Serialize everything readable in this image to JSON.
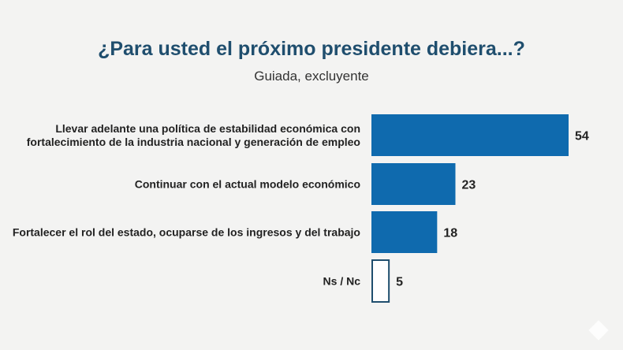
{
  "chart_data": {
    "type": "bar",
    "orientation": "horizontal",
    "title": "¿Para usted el próximo presidente debiera...?",
    "subtitle": "Guiada, excluyente",
    "categories": [
      [
        "Llevar adelante una política de estabilidad económica con",
        "fortalecimiento de la industria nacional y generación de empleo"
      ],
      [
        "Continuar con el actual modelo económico"
      ],
      [
        "Fortalecer el rol del estado, ocuparse de los ingresos y del trabajo"
      ],
      [
        "Ns / Nc"
      ]
    ],
    "values": [
      54,
      23,
      18,
      5
    ],
    "styles": [
      "filled",
      "filled",
      "filled",
      "outline"
    ],
    "xlim": [
      0,
      54
    ],
    "xlabel": "",
    "ylabel": "",
    "grid": false,
    "colors": {
      "bar": "#0f6aae",
      "outline": "#1f4e6e",
      "title": "#1f4e6e"
    }
  }
}
